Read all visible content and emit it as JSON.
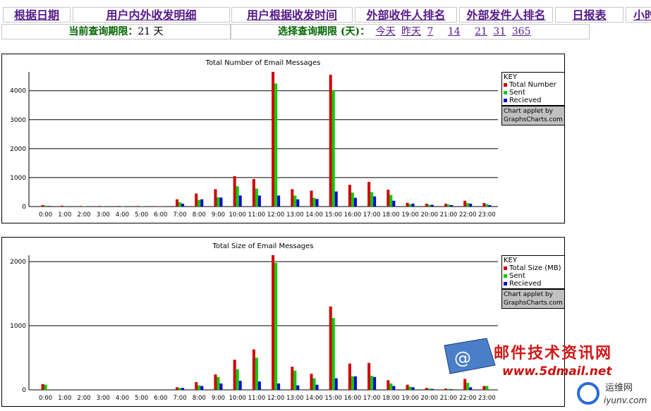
{
  "nav": [
    {
      "label": "根据日期"
    },
    {
      "label": "用户内外收发明细"
    },
    {
      "label": "用户根据收发时间"
    },
    {
      "label": "外部收件人排名"
    },
    {
      "label": "外部发件人排名"
    },
    {
      "label": "日报表"
    },
    {
      "label": "小时"
    }
  ],
  "current_period": {
    "label": "当前查询期限：",
    "value": "21 天"
  },
  "select_period": {
    "label": "选择查询期限 (天)：",
    "options": [
      "今天",
      "昨天",
      "7",
      "14",
      "21",
      "31",
      "365"
    ]
  },
  "colors": {
    "total": "#cc0000",
    "sent": "#00cc00",
    "received": "#0000cc"
  },
  "applet_credit": {
    "line1": "Chart applet by",
    "line2": "GraphsCharts.com"
  },
  "watermark": {
    "line1": "邮件技术资讯网",
    "line2": "www.5dmail.net",
    "badge": "运维网",
    "badge_sub": "iyunv.com"
  },
  "chart_data": [
    {
      "type": "bar",
      "title": "Total Number of Email Messages",
      "legend_title": "KEY",
      "legend_position": "right",
      "categories": [
        "0:00",
        "1:00",
        "2:00",
        "3:00",
        "4:00",
        "5:00",
        "6:00",
        "7:00",
        "8:00",
        "9:00",
        "10:00",
        "11:00",
        "12:00",
        "13:00",
        "14:00",
        "15:00",
        "16:00",
        "17:00",
        "18:00",
        "19:00",
        "20:00",
        "21:00",
        "22:00",
        "23:00"
      ],
      "ylim": [
        0,
        4650
      ],
      "yticks": [
        0,
        1000,
        2000,
        3000,
        4000
      ],
      "grid": true,
      "series": [
        {
          "name": "Total Number",
          "values": [
            50,
            30,
            20,
            20,
            20,
            20,
            10,
            250,
            450,
            600,
            1050,
            950,
            4650,
            600,
            550,
            4550,
            750,
            850,
            580,
            130,
            100,
            100,
            200,
            120
          ]
        },
        {
          "name": "Sent",
          "values": [
            30,
            20,
            15,
            15,
            15,
            15,
            5,
            150,
            230,
            320,
            700,
            620,
            4250,
            380,
            300,
            4020,
            480,
            500,
            400,
            80,
            60,
            70,
            120,
            80
          ]
        },
        {
          "name": "Recieved",
          "values": [
            20,
            10,
            5,
            5,
            5,
            5,
            5,
            100,
            250,
            310,
            380,
            380,
            380,
            250,
            260,
            520,
            300,
            350,
            200,
            100,
            60,
            50,
            100,
            50
          ]
        }
      ]
    },
    {
      "type": "bar",
      "title": "Total Size of Email Messages",
      "legend_title": "KEY",
      "legend_position": "right",
      "categories": [
        "0:00",
        "1:00",
        "2:00",
        "3:00",
        "4:00",
        "5:00",
        "6:00",
        "7:00",
        "8:00",
        "9:00",
        "10:00",
        "11:00",
        "12:00",
        "13:00",
        "14:00",
        "15:00",
        "16:00",
        "17:00",
        "18:00",
        "19:00",
        "20:00",
        "21:00",
        "22:00",
        "23:00"
      ],
      "ylim": [
        0,
        2100
      ],
      "yticks": [
        0,
        1000,
        2000
      ],
      "grid": true,
      "series": [
        {
          "name": "Total Size (MB)",
          "values": [
            90,
            0,
            0,
            0,
            0,
            0,
            0,
            40,
            120,
            240,
            470,
            630,
            2100,
            360,
            250,
            1300,
            410,
            420,
            150,
            80,
            30,
            20,
            170,
            60
          ]
        },
        {
          "name": "Sent",
          "values": [
            80,
            0,
            0,
            0,
            0,
            0,
            0,
            30,
            70,
            200,
            320,
            500,
            1980,
            300,
            180,
            1120,
            210,
            220,
            100,
            50,
            20,
            15,
            110,
            60
          ]
        },
        {
          "name": "Recieved",
          "values": [
            0,
            0,
            0,
            0,
            0,
            0,
            0,
            30,
            60,
            100,
            140,
            130,
            100,
            70,
            80,
            180,
            210,
            200,
            60,
            40,
            15,
            10,
            40,
            0
          ]
        }
      ]
    }
  ]
}
